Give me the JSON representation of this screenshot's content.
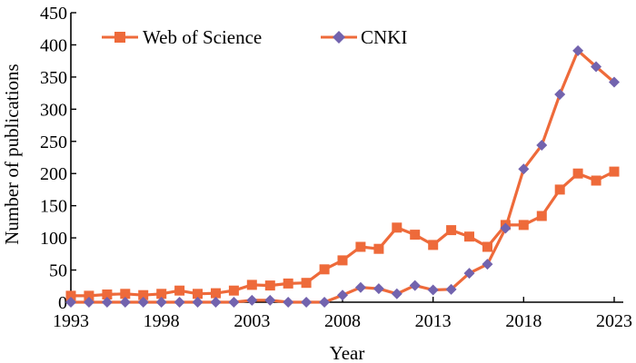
{
  "chart_data": {
    "type": "line",
    "title": "",
    "xlabel": "Year",
    "ylabel": "Number of publications",
    "xlim": [
      1993,
      2023
    ],
    "ylim": [
      0,
      450
    ],
    "x_ticks": [
      "1993",
      "1998",
      "2003",
      "2008",
      "2013",
      "2018",
      "2023"
    ],
    "y_ticks": [
      "0",
      "50",
      "100",
      "150",
      "200",
      "250",
      "300",
      "350",
      "400",
      "450"
    ],
    "grid": false,
    "legend": "top-left",
    "x": [
      1993,
      1994,
      1995,
      1996,
      1997,
      1998,
      1999,
      2000,
      2001,
      2002,
      2003,
      2004,
      2005,
      2006,
      2007,
      2008,
      2009,
      2010,
      2011,
      2012,
      2013,
      2014,
      2015,
      2016,
      2017,
      2018,
      2019,
      2020,
      2021,
      2022,
      2023
    ],
    "series": [
      {
        "name": "Web of Science",
        "marker": "square",
        "color": "#EE6A3A",
        "values": [
          10,
          10,
          12,
          13,
          11,
          13,
          18,
          13,
          14,
          18,
          27,
          26,
          29,
          30,
          51,
          65,
          86,
          83,
          116,
          105,
          89,
          112,
          102,
          86,
          120,
          120,
          134,
          175,
          200,
          189,
          203
        ]
      },
      {
        "name": "CNKI",
        "marker": "diamond",
        "color": "#EE6A3A",
        "marker_color": "#7263AE",
        "values": [
          0,
          0,
          0,
          0,
          0,
          0,
          0,
          0,
          0,
          0,
          3,
          3,
          0,
          0,
          0,
          11,
          23,
          21,
          13,
          26,
          19,
          20,
          45,
          59,
          115,
          207,
          244,
          323,
          391,
          366,
          342
        ]
      }
    ]
  }
}
